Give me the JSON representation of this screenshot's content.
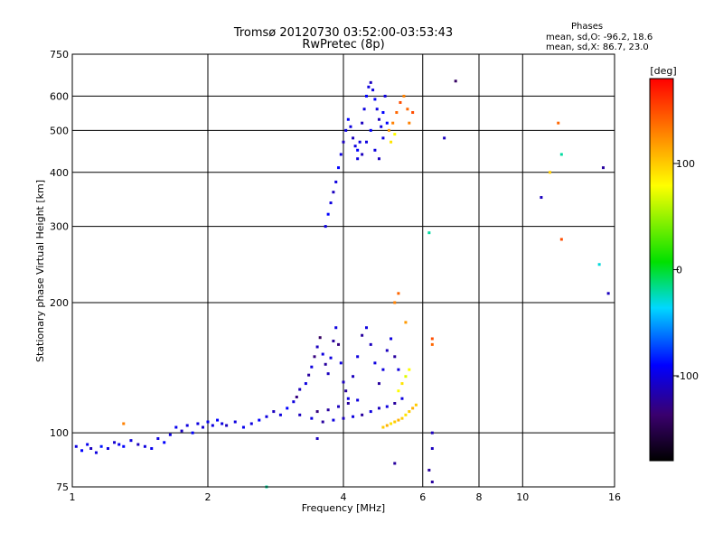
{
  "chart_data": {
    "type": "scatter",
    "title": [
      "Tromsø 20120730 03:52:00-03:53:43",
      "RwPretec (8p)"
    ],
    "legend": {
      "heading": "Phases",
      "lines": [
        "mean, sd,O: -96.2, 18.6",
        "mean, sd,X: 86.7, 23.0"
      ]
    },
    "xlabel": "Frequency [MHz]",
    "ylabel": "Stationary phase Virtual Height [km]",
    "x_scale": "log",
    "y_scale": "log",
    "xlim": [
      1,
      16
    ],
    "ylim": [
      75,
      750
    ],
    "x_ticks": [
      1,
      2,
      4,
      6,
      8,
      10,
      16
    ],
    "x_tick_labels": [
      "1",
      "2",
      "4",
      "6",
      "8",
      "10",
      "16"
    ],
    "x_grid": [
      2,
      4,
      6,
      8,
      10
    ],
    "y_ticks": [
      75,
      100,
      200,
      300,
      400,
      500,
      600,
      750
    ],
    "y_tick_labels": [
      "75",
      "100",
      "200",
      "300",
      "400",
      "500",
      "600",
      "750"
    ],
    "y_grid": [
      100,
      200,
      300,
      400,
      500,
      600
    ],
    "grid": true,
    "colorbar": {
      "label": "[deg]",
      "range": [
        -180,
        180
      ],
      "ticks": [
        100,
        0,
        -100
      ],
      "tick_labels": [
        "100",
        "0",
        "-100"
      ]
    },
    "series": [
      {
        "points": [
          [
            1.02,
            93,
            -100
          ],
          [
            1.05,
            91,
            -90
          ],
          [
            1.08,
            94,
            -95
          ],
          [
            1.1,
            92,
            -110
          ],
          [
            1.13,
            90,
            -100
          ],
          [
            1.16,
            93,
            -85
          ],
          [
            1.2,
            92,
            -100
          ],
          [
            1.24,
            95,
            -105
          ],
          [
            1.27,
            94,
            -95
          ],
          [
            1.3,
            93,
            -90
          ],
          [
            1.35,
            96,
            -100
          ],
          [
            1.4,
            94,
            -110
          ],
          [
            1.45,
            93,
            -100
          ],
          [
            1.5,
            92,
            -95
          ],
          [
            1.55,
            97,
            -100
          ],
          [
            1.6,
            95,
            -90
          ],
          [
            1.65,
            99,
            -100
          ],
          [
            1.7,
            103,
            -95
          ],
          [
            1.75,
            101,
            -110
          ],
          [
            1.8,
            104,
            -100
          ],
          [
            1.85,
            100,
            -90
          ],
          [
            1.9,
            105,
            -100
          ],
          [
            1.95,
            103,
            -105
          ],
          [
            2.0,
            106,
            -95
          ],
          [
            2.05,
            104,
            -100
          ],
          [
            2.1,
            107,
            -90
          ],
          [
            2.15,
            105,
            -100
          ],
          [
            2.2,
            104,
            -110
          ],
          [
            2.3,
            106,
            -100
          ],
          [
            2.4,
            103,
            -95
          ],
          [
            2.5,
            105,
            -100
          ],
          [
            2.6,
            107,
            -90
          ],
          [
            2.7,
            109,
            -100
          ],
          [
            2.8,
            112,
            -110
          ],
          [
            2.9,
            110,
            -100
          ],
          [
            3.0,
            114,
            -90
          ],
          [
            3.1,
            118,
            -100
          ],
          [
            3.15,
            121,
            -130
          ],
          [
            3.2,
            126,
            -110
          ],
          [
            3.3,
            130,
            -100
          ],
          [
            3.35,
            136,
            -120
          ],
          [
            3.4,
            142,
            -100
          ],
          [
            3.45,
            150,
            -130
          ],
          [
            3.5,
            158,
            -110
          ],
          [
            3.55,
            166,
            -140
          ],
          [
            3.6,
            152,
            -100
          ],
          [
            3.65,
            144,
            -120
          ],
          [
            3.7,
            137,
            -110
          ],
          [
            3.75,
            149,
            -100
          ],
          [
            3.8,
            163,
            -120
          ],
          [
            3.85,
            175,
            -100
          ],
          [
            3.9,
            160,
            -130
          ],
          [
            3.95,
            145,
            -100
          ],
          [
            4.0,
            131,
            -110
          ],
          [
            4.05,
            125,
            -120
          ],
          [
            4.1,
            120,
            -100
          ],
          [
            4.2,
            135,
            -110
          ],
          [
            4.3,
            150,
            -100
          ],
          [
            4.4,
            168,
            -120
          ],
          [
            4.5,
            175,
            -100
          ],
          [
            4.6,
            160,
            -110
          ],
          [
            4.7,
            145,
            -100
          ],
          [
            4.8,
            130,
            -120
          ],
          [
            4.9,
            140,
            -100
          ],
          [
            5.0,
            155,
            -110
          ],
          [
            5.1,
            165,
            -100
          ],
          [
            5.2,
            150,
            -120
          ],
          [
            5.3,
            140,
            -100
          ],
          [
            3.2,
            110,
            -110
          ],
          [
            3.4,
            108,
            -100
          ],
          [
            3.6,
            106,
            -120
          ],
          [
            3.8,
            107,
            -100
          ],
          [
            4.0,
            108,
            -110
          ],
          [
            4.2,
            109,
            -100
          ],
          [
            4.4,
            110,
            -120
          ],
          [
            4.6,
            112,
            -100
          ],
          [
            4.8,
            114,
            -110
          ],
          [
            5.0,
            115,
            -100
          ],
          [
            5.2,
            117,
            -120
          ],
          [
            5.4,
            120,
            -100
          ],
          [
            3.5,
            112,
            -130
          ],
          [
            3.7,
            113,
            -120
          ],
          [
            3.9,
            115,
            -110
          ],
          [
            4.1,
            117,
            -120
          ],
          [
            4.3,
            119,
            -100
          ],
          [
            3.65,
            300,
            -100
          ],
          [
            3.7,
            320,
            -90
          ],
          [
            3.75,
            340,
            -100
          ],
          [
            3.8,
            360,
            -110
          ],
          [
            3.85,
            380,
            -100
          ],
          [
            3.9,
            410,
            -90
          ],
          [
            3.95,
            440,
            -100
          ],
          [
            4.0,
            470,
            -110
          ],
          [
            4.05,
            500,
            -100
          ],
          [
            4.1,
            530,
            -90
          ],
          [
            4.15,
            510,
            -100
          ],
          [
            4.2,
            480,
            -110
          ],
          [
            4.25,
            460,
            -100
          ],
          [
            4.3,
            450,
            -90
          ],
          [
            4.35,
            470,
            -100
          ],
          [
            4.4,
            520,
            -110
          ],
          [
            4.45,
            560,
            -100
          ],
          [
            4.5,
            600,
            -90
          ],
          [
            4.55,
            630,
            -100
          ],
          [
            4.6,
            645,
            -110
          ],
          [
            4.65,
            620,
            -100
          ],
          [
            4.7,
            590,
            -90
          ],
          [
            4.75,
            560,
            -100
          ],
          [
            4.8,
            530,
            -110
          ],
          [
            4.85,
            510,
            -100
          ],
          [
            4.9,
            550,
            -90
          ],
          [
            4.95,
            600,
            -100
          ],
          [
            4.3,
            430,
            -100
          ],
          [
            4.4,
            440,
            -110
          ],
          [
            4.5,
            470,
            -100
          ],
          [
            4.6,
            500,
            -90
          ],
          [
            4.7,
            450,
            -100
          ],
          [
            4.8,
            430,
            -110
          ],
          [
            4.9,
            480,
            -100
          ],
          [
            5.0,
            520,
            -90
          ]
        ]
      },
      {
        "points": [
          [
            4.9,
            103,
            100
          ],
          [
            5.0,
            104,
            110
          ],
          [
            5.1,
            105,
            90
          ],
          [
            5.2,
            106,
            100
          ],
          [
            5.3,
            107,
            110
          ],
          [
            5.4,
            108,
            100
          ],
          [
            5.5,
            110,
            90
          ],
          [
            5.6,
            112,
            100
          ],
          [
            5.7,
            114,
            110
          ],
          [
            5.8,
            116,
            100
          ],
          [
            5.3,
            125,
            80
          ],
          [
            5.4,
            130,
            90
          ],
          [
            5.5,
            135,
            70
          ],
          [
            5.6,
            140,
            80
          ],
          [
            5.05,
            500,
            120
          ],
          [
            5.15,
            520,
            130
          ],
          [
            5.25,
            550,
            140
          ],
          [
            5.35,
            580,
            150
          ],
          [
            5.45,
            600,
            130
          ],
          [
            5.55,
            560,
            140
          ],
          [
            5.6,
            520,
            130
          ],
          [
            5.7,
            550,
            150
          ],
          [
            5.1,
            470,
            90
          ],
          [
            5.2,
            490,
            80
          ]
        ]
      },
      {
        "points": [
          [
            1.3,
            105,
            130
          ],
          [
            6.3,
            160,
            140
          ],
          [
            6.3,
            165,
            150
          ],
          [
            5.3,
            210,
            140
          ],
          [
            5.2,
            200,
            130
          ],
          [
            5.5,
            180,
            120
          ],
          [
            6.2,
            290,
            -20
          ],
          [
            7.1,
            650,
            -140
          ],
          [
            6.7,
            480,
            -110
          ],
          [
            6.3,
            100,
            -110
          ],
          [
            6.3,
            92,
            -110
          ],
          [
            6.3,
            77,
            -120
          ],
          [
            5.2,
            85,
            -120
          ],
          [
            6.2,
            82,
            -120
          ],
          [
            11.0,
            350,
            -110
          ],
          [
            12.0,
            520,
            140
          ],
          [
            12.2,
            440,
            -20
          ],
          [
            12.2,
            280,
            150
          ],
          [
            11.5,
            400,
            100
          ],
          [
            14.8,
            245,
            -30
          ],
          [
            15.1,
            410,
            -120
          ],
          [
            15.5,
            210,
            -110
          ],
          [
            3.5,
            97,
            -110
          ],
          [
            2.7,
            75,
            -20
          ]
        ]
      }
    ]
  }
}
